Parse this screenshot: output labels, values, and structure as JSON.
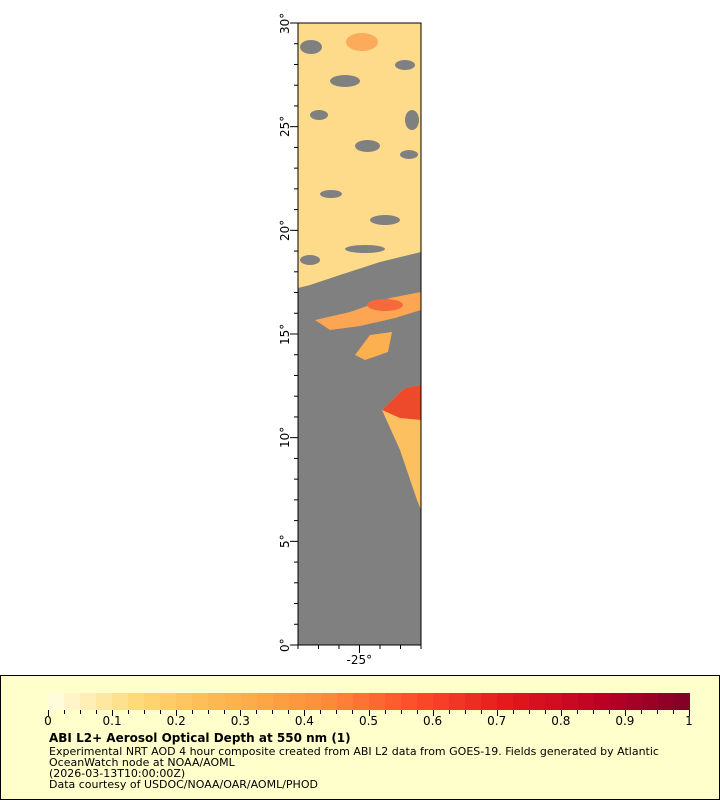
{
  "map": {
    "lon_range": [
      -28,
      -22
    ],
    "lat_range": [
      0,
      30
    ],
    "land_nodata_color": "#808080",
    "lat_tick_labels": [
      {
        "lat": 0,
        "label": "0°"
      },
      {
        "lat": 5,
        "label": "5°"
      },
      {
        "lat": 10,
        "label": "10°"
      },
      {
        "lat": 15,
        "label": "15°"
      },
      {
        "lat": 20,
        "label": "20°"
      },
      {
        "lat": 25,
        "label": "25°"
      },
      {
        "lat": 30,
        "label": "30°"
      }
    ],
    "lon_tick_labels": [
      {
        "lon": -25,
        "label": "-25°"
      }
    ]
  },
  "legend": {
    "background": "#ffffcc",
    "colorbar": {
      "min": 0,
      "max": 1,
      "colors": [
        "#ffffe6",
        "#fed976",
        "#feb24c",
        "#fd8d3c",
        "#fc4e2a",
        "#e31a1c",
        "#bd0026",
        "#800026"
      ],
      "tick_labels": [
        "0",
        "0.1",
        "0.2",
        "0.3",
        "0.4",
        "0.5",
        "0.6",
        "0.7",
        "0.8",
        "0.9",
        "1"
      ]
    },
    "title": "ABI L2+ Aerosol Optical Depth at 550 nm (1)",
    "line1": "Experimental NRT AOD 4 hour composite created from ABI L2 data from GOES-19. Fields generated by Atlantic",
    "line2": "OceanWatch node at NOAA/AOML",
    "line3": "(2026-03-13T10:00:00Z)",
    "line4": "Data courtesy of USDOC/NOAA/OAR/AOML/PHOD"
  }
}
